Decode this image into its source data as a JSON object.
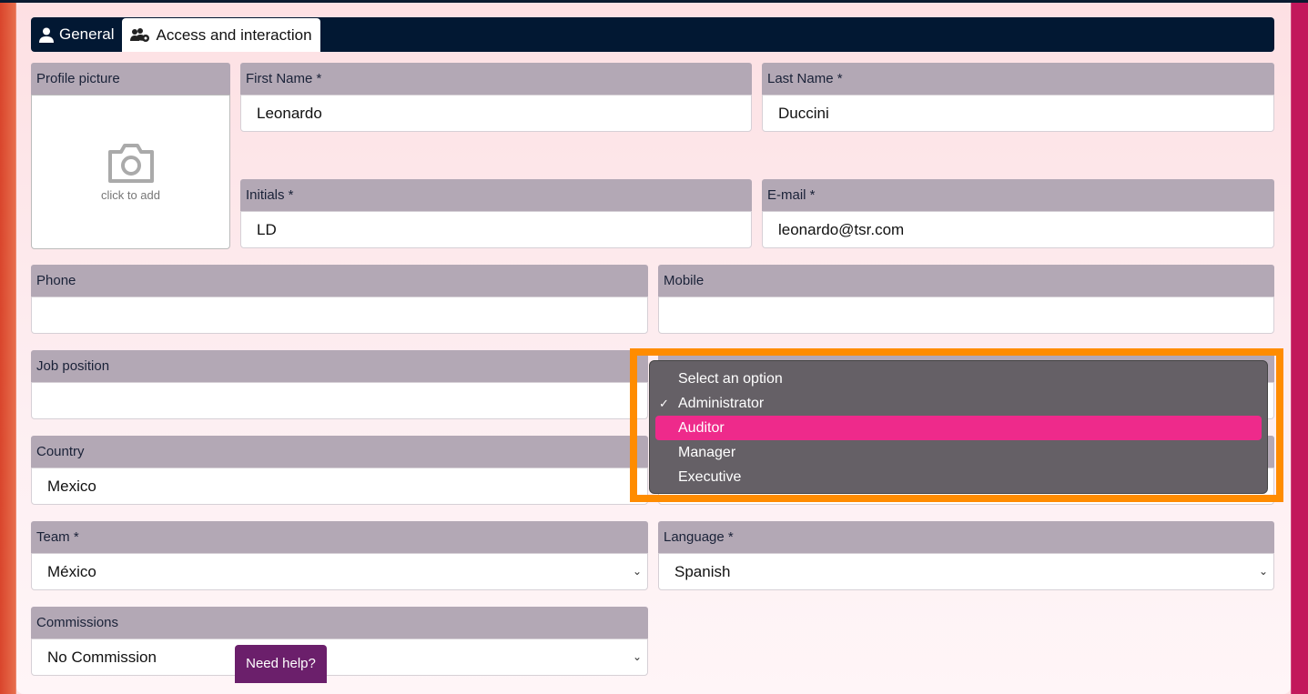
{
  "tabs": [
    {
      "label": "General",
      "icon": "user-icon"
    },
    {
      "label": "Access and interaction",
      "icon": "users-cog-icon",
      "active": true
    }
  ],
  "profile": {
    "label": "Profile picture",
    "hint": "click to add"
  },
  "fields": {
    "first_name": {
      "label": "First Name *",
      "value": "Leonardo"
    },
    "last_name": {
      "label": "Last Name *",
      "value": "Duccini"
    },
    "initials": {
      "label": "Initials *",
      "value": "LD"
    },
    "email": {
      "label": "E-mail *",
      "value": "leonardo@tsr.com"
    },
    "phone": {
      "label": "Phone",
      "value": ""
    },
    "mobile": {
      "label": "Mobile",
      "value": ""
    },
    "job_position": {
      "label": "Job position",
      "value": ""
    },
    "country": {
      "label": "Country",
      "value": "Mexico"
    },
    "team": {
      "label": "Team *",
      "value": "México"
    },
    "language": {
      "label": "Language *",
      "value": "Spanish"
    },
    "commissions": {
      "label": "Commissions",
      "value": "No Commission"
    }
  },
  "dropdown": {
    "options": [
      "Select an option",
      "Administrator",
      "Auditor",
      "Manager",
      "Executive"
    ],
    "selected": "Administrator",
    "highlighted": "Auditor",
    "highlight_color": "#ee2a8b",
    "annotation_color": "#ff8c00"
  },
  "help": {
    "label": "Need help?"
  }
}
